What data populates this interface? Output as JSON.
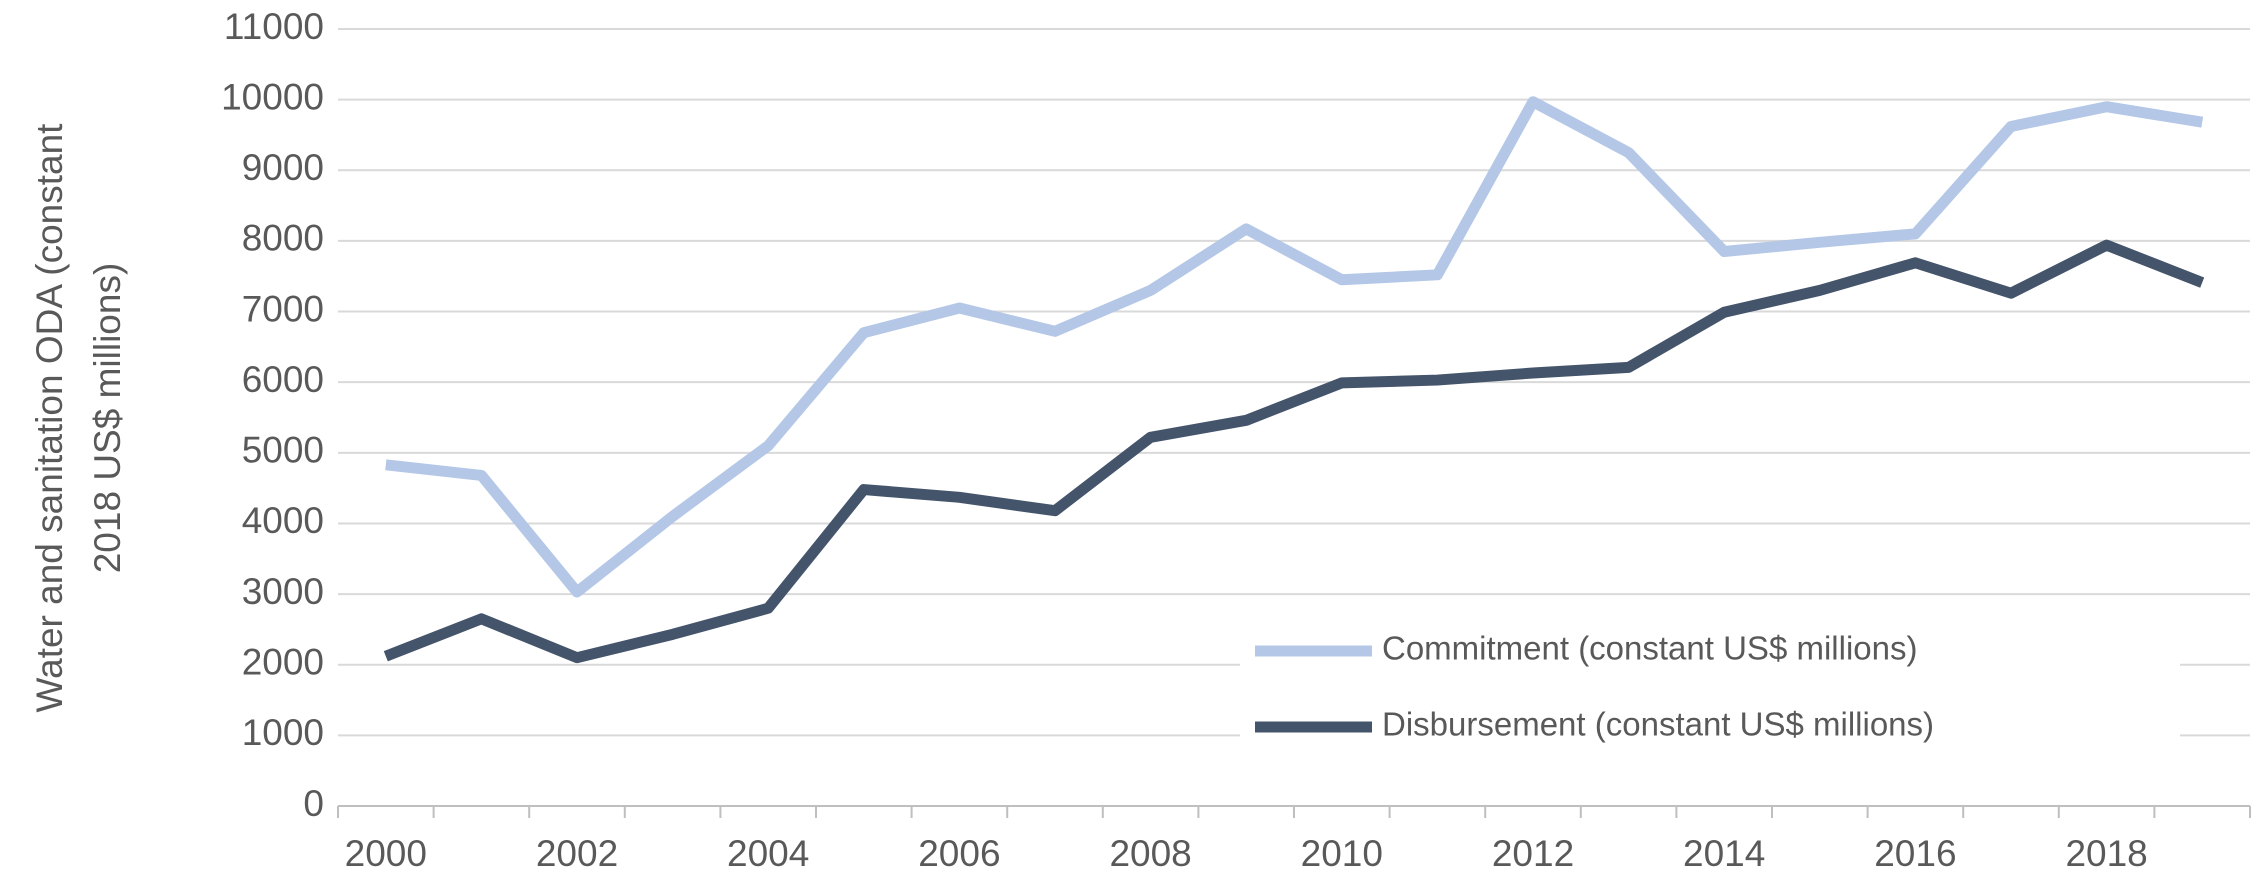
{
  "chart_data": {
    "type": "line",
    "y_label": [
      "Water and sanitation ODA (constant",
      "2018 US$ millions)"
    ],
    "categories": [
      "2000",
      null,
      "2002",
      null,
      "2004",
      null,
      "2006",
      null,
      "2008",
      null,
      "2010",
      null,
      "2012",
      null,
      "2014",
      null,
      "2016",
      null,
      "2018",
      null
    ],
    "series": [
      {
        "name": "Commitment (constant US$ millions)",
        "color": "#b4c7e7",
        "values": [
          4830,
          4680,
          3030,
          4100,
          5100,
          6700,
          7050,
          6720,
          7300,
          8170,
          7450,
          7520,
          9970,
          9250,
          7850,
          7980,
          8100,
          9620,
          9900,
          9680
        ]
      },
      {
        "name": "Disbursement (constant US$ millions)",
        "color": "#44546a",
        "values": [
          2120,
          2650,
          2100,
          2430,
          2800,
          4480,
          4370,
          4180,
          5220,
          5460,
          5990,
          6030,
          6130,
          6210,
          6990,
          7300,
          7690,
          7260,
          7940,
          7410
        ]
      }
    ],
    "ylim": [
      0,
      11000
    ],
    "yticks": [
      0,
      1000,
      2000,
      3000,
      4000,
      5000,
      6000,
      7000,
      8000,
      9000,
      10000,
      11000
    ],
    "grid": true,
    "legend": "lower right"
  }
}
